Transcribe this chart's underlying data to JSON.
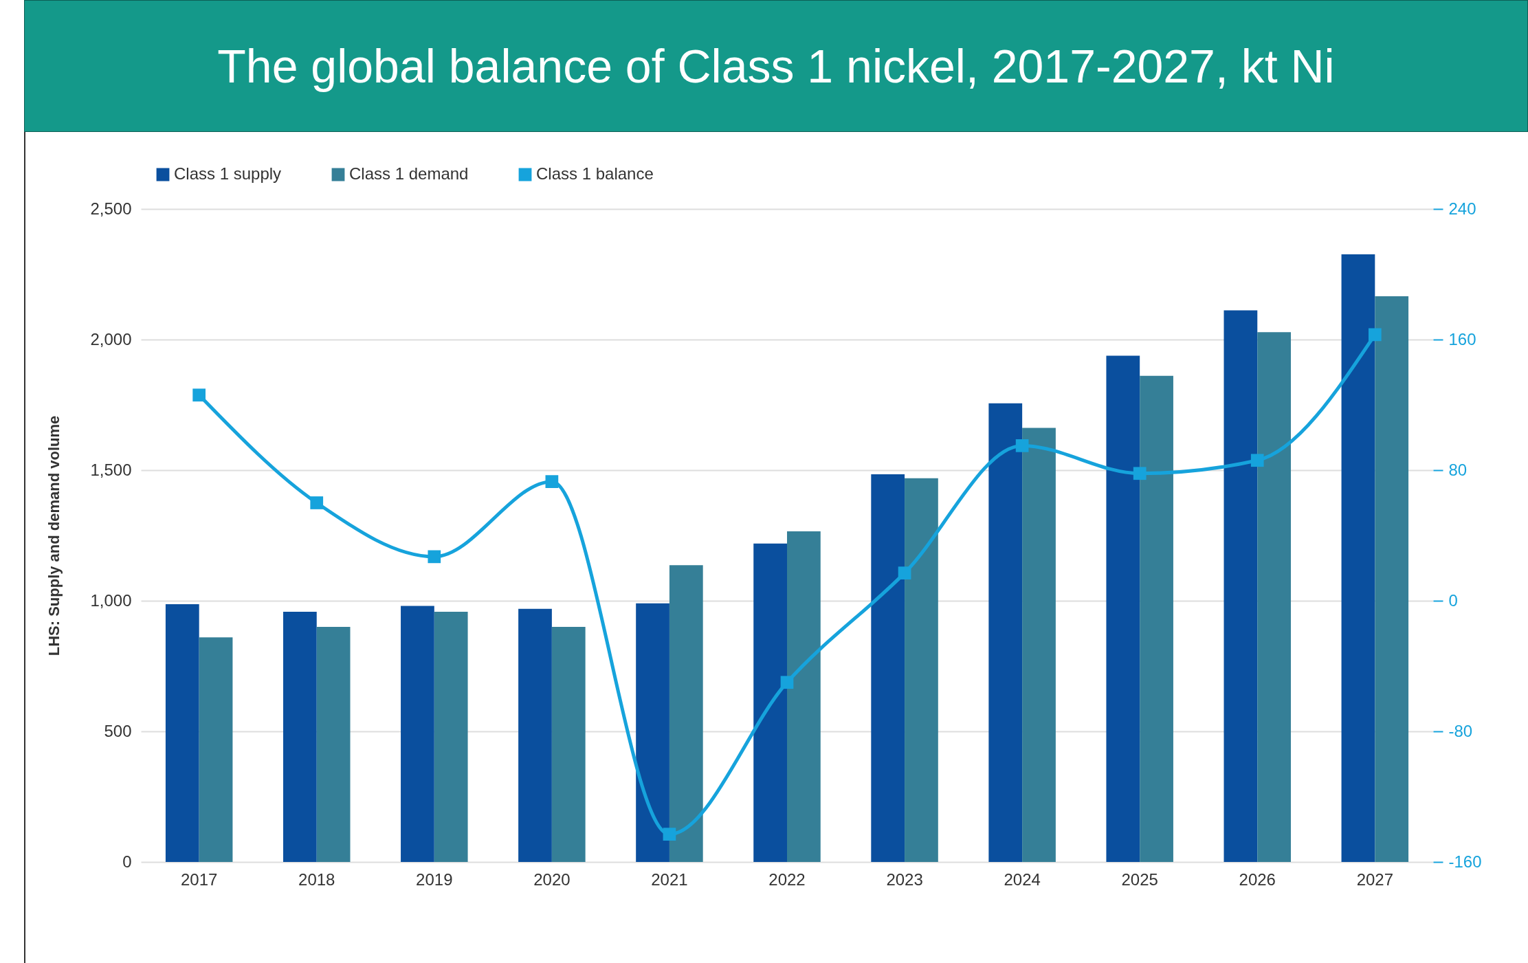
{
  "chart_data": {
    "type": "bar",
    "title": "The global balance of Class 1 nickel, 2017-2027, kt Ni",
    "ylabel": "LHS: Supply and demand volume",
    "categories": [
      "2017",
      "2018",
      "2019",
      "2020",
      "2021",
      "2022",
      "2023",
      "2024",
      "2025",
      "2026",
      "2027"
    ],
    "series": [
      {
        "name": "Class 1 supply",
        "color": "#0a4f9e",
        "values": [
          987,
          958,
          980,
          969,
          990,
          1219,
          1484,
          1756,
          1938,
          2112,
          2326
        ]
      },
      {
        "name": "Class 1 demand",
        "color": "#357f97",
        "values": [
          860,
          900,
          958,
          900,
          1136,
          1266,
          1469,
          1662,
          1861,
          2028,
          2166
        ]
      },
      {
        "name": "Class 1 balance",
        "type": "line",
        "axis": "y2",
        "color": "#16a3dc",
        "values": [
          126,
          60,
          27,
          73,
          -143,
          -50,
          17,
          95,
          78,
          86,
          163
        ]
      }
    ],
    "ylim": [
      0,
      2500
    ],
    "yticks": [
      0,
      {
        "value": 500,
        "label": "500"
      },
      {
        "value": 1000,
        "label": "1,000"
      },
      {
        "value": 1500,
        "label": "1,500"
      },
      {
        "value": 2000,
        "label": "2,000"
      },
      {
        "value": 2500,
        "label": "2,500"
      }
    ],
    "y2lim": [
      -160,
      240
    ],
    "y2ticks": [
      -160,
      -80,
      0,
      80,
      160,
      240
    ],
    "grid": "y",
    "legend": "top",
    "marker": "square",
    "line_style": "solid"
  }
}
